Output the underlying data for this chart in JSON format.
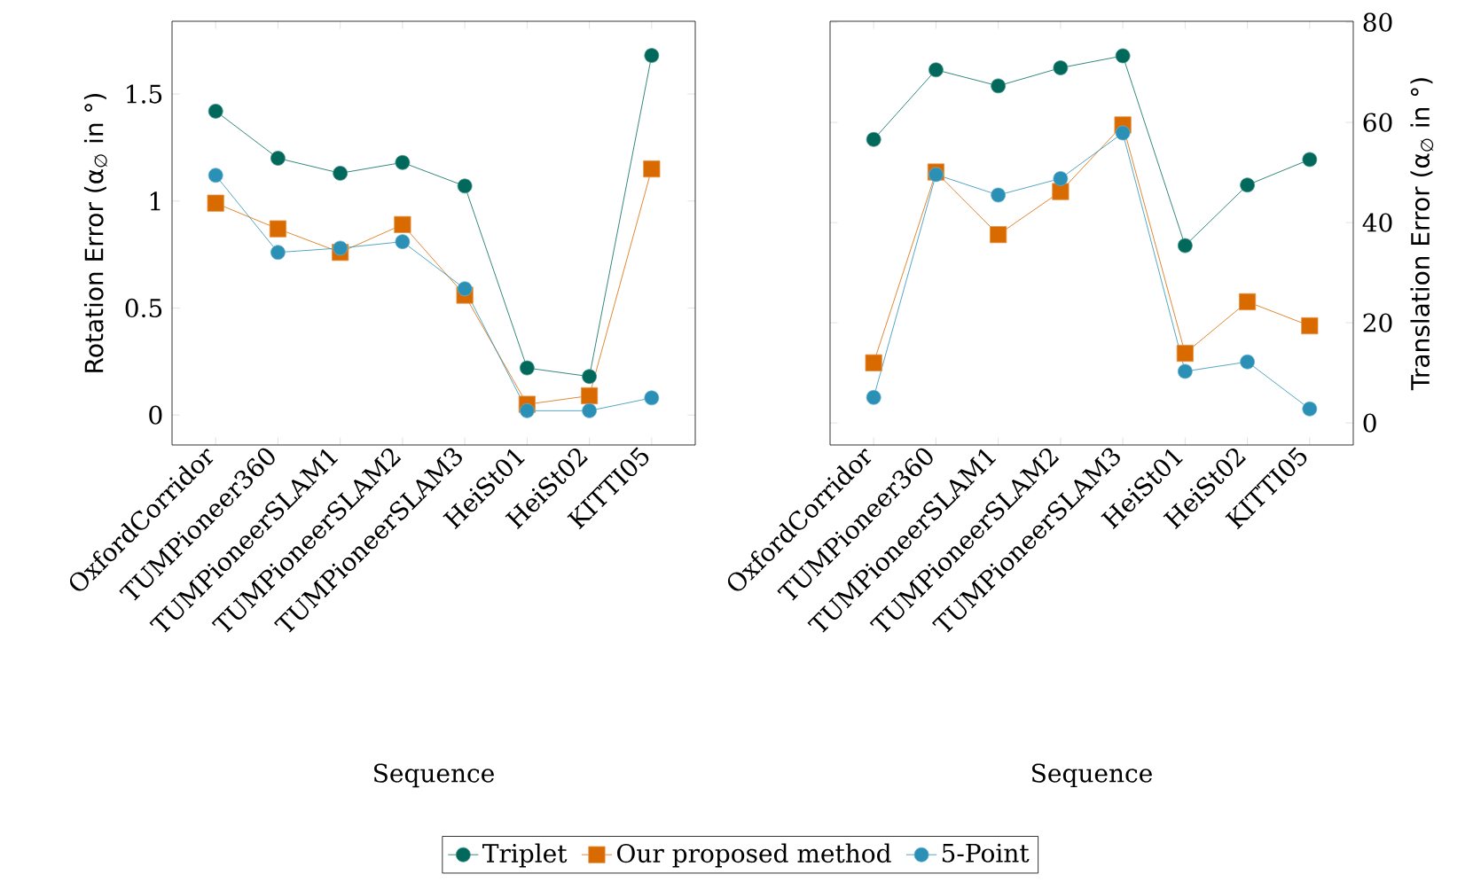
{
  "chart_data": [
    {
      "type": "line",
      "xlabel": "Sequence",
      "ylabel": "Rotation Error (α$_{∅}$ in °)",
      "categories": [
        "OxfordCorridor",
        "TUMPioneer360",
        "TUMPioneerSLAM1",
        "TUMPioneerSLAM2",
        "TUMPioneerSLAM3",
        "HeiSt01",
        "HeiSt02",
        "KITTI05"
      ],
      "ylim": [
        -0.14,
        1.84
      ],
      "yticks": [
        0,
        0.5,
        1,
        1.5
      ],
      "legend": "bottom",
      "series": [
        {
          "name": "Triplet",
          "color": "#00695c",
          "marker": "circle",
          "values": [
            1.42,
            1.2,
            1.13,
            1.18,
            1.07,
            0.22,
            0.18,
            1.68
          ]
        },
        {
          "name": "Our proposed method",
          "color": "#d96a00",
          "marker": "square",
          "values": [
            0.99,
            0.87,
            0.76,
            0.89,
            0.56,
            0.05,
            0.09,
            1.15
          ]
        },
        {
          "name": "5-Point",
          "color": "#2a90b5",
          "marker": "circle",
          "values": [
            1.12,
            0.76,
            0.78,
            0.81,
            0.59,
            0.02,
            0.02,
            0.08
          ]
        }
      ]
    },
    {
      "type": "line",
      "xlabel": "Sequence",
      "ylabel": "Translation Error (α$_{∅}$ in °)",
      "categories": [
        "OxfordCorridor",
        "TUMPioneer360",
        "TUMPioneerSLAM1",
        "TUMPioneerSLAM2",
        "TUMPioneerSLAM3",
        "HeiSt01",
        "HeiSt02",
        "KITTI05"
      ],
      "ylim": [
        -4.4,
        80.2
      ],
      "yticks": [
        0,
        20,
        40,
        60,
        80
      ],
      "series": [
        {
          "color": "#00695c",
          "marker": "circle",
          "values": [
            56.6,
            70.5,
            67.3,
            70.9,
            73.3,
            35.4,
            47.5,
            52.6
          ]
        },
        {
          "color": "#d96a00",
          "marker": "square",
          "values": [
            12,
            50.1,
            37.6,
            46.2,
            59.5,
            13.9,
            24.2,
            19.4
          ]
        },
        {
          "color": "#2a90b5",
          "marker": "circle",
          "values": [
            5.1,
            49.6,
            45.5,
            48.8,
            57.9,
            10.3,
            12.2,
            2.8
          ]
        }
      ]
    }
  ]
}
